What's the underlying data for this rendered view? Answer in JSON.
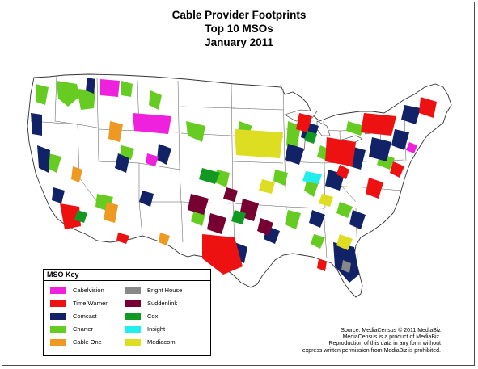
{
  "title": {
    "line1": "Cable Provider Footprints",
    "line2": "Top 10 MSOs",
    "line3": "January 2011"
  },
  "legend": {
    "title": "MSO Key",
    "items": [
      {
        "label": "Cabelvision",
        "color": "#ee22dd"
      },
      {
        "label": "Time Warner",
        "color": "#ee1111"
      },
      {
        "label": "Comcast",
        "color": "#112266"
      },
      {
        "label": "Charter",
        "color": "#66cc22"
      },
      {
        "label": "Cable One",
        "color": "#ee9922"
      },
      {
        "label": "Bright House",
        "color": "#888888"
      },
      {
        "label": "Suddenlink",
        "color": "#770033"
      },
      {
        "label": "Cox",
        "color": "#119922"
      },
      {
        "label": "Insight",
        "color": "#22eeee"
      },
      {
        "label": "Mediacom",
        "color": "#dddd22"
      }
    ]
  },
  "source": {
    "line1": "Source: MediaCensus © 2011 MediaBiz",
    "line2": "MediaCensus is a product of MediaBiz.",
    "line3": "Reproduction of this data in any form without",
    "line4": "express written permission from MediaBiz is prohibited."
  }
}
